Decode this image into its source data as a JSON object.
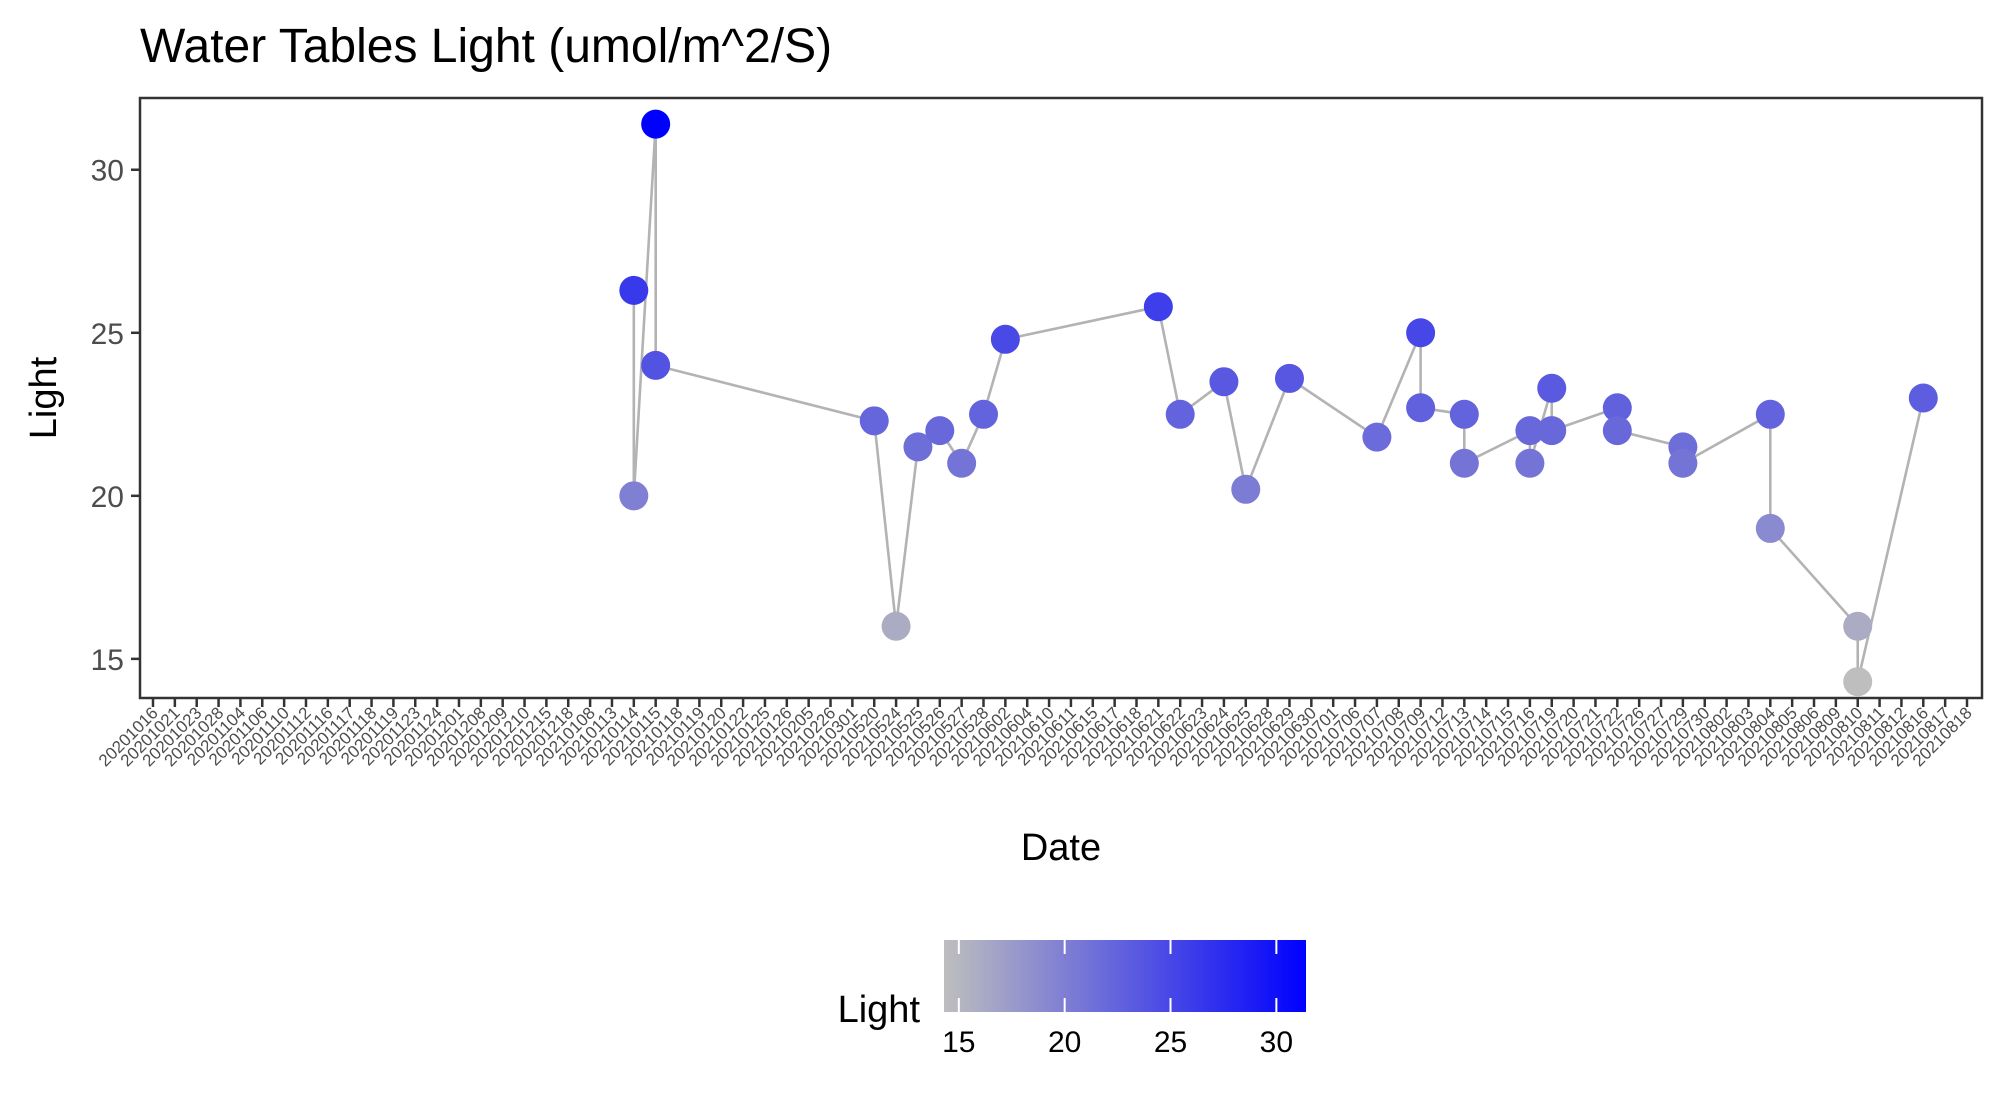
{
  "chart_data": {
    "type": "scatter",
    "title": "Water Tables Light (umol/m^2/S)",
    "xlabel": "Date",
    "ylabel": "Light",
    "ylim": [
      13.8,
      32.2
    ],
    "yticks": [
      15,
      20,
      25,
      30
    ],
    "grid": false,
    "legend": {
      "title": "Light",
      "position": "bottom",
      "type": "colorbar",
      "ticks": [
        15,
        20,
        25,
        30
      ],
      "range": [
        14.3,
        31.4
      ],
      "color_low": "#bebebe",
      "color_high": "#0000ff"
    },
    "segment_color": "#b3b3b3",
    "categories": [
      "20201016",
      "20201021",
      "20201023",
      "20201028",
      "20201104",
      "20201106",
      "20201110",
      "20201112",
      "20201116",
      "20201117",
      "20201118",
      "20201119",
      "20201123",
      "20201124",
      "20201201",
      "20201208",
      "20201209",
      "20201210",
      "20201215",
      "20201218",
      "20210108",
      "20210113",
      "20210114",
      "20210115",
      "20210118",
      "20210119",
      "20210120",
      "20210122",
      "20210125",
      "20210126",
      "20210205",
      "20210226",
      "20210301",
      "20210520",
      "20210524",
      "20210525",
      "20210526",
      "20210527",
      "20210528",
      "20210602",
      "20210604",
      "20210610",
      "20210611",
      "20210615",
      "20210617",
      "20210618",
      "20210621",
      "20210622",
      "20210623",
      "20210624",
      "20210625",
      "20210628",
      "20210629",
      "20210630",
      "20210701",
      "20210706",
      "20210707",
      "20210708",
      "20210709",
      "20210712",
      "20210713",
      "20210714",
      "20210715",
      "20210716",
      "20210719",
      "20210720",
      "20210721",
      "20210722",
      "20210726",
      "20210727",
      "20210729",
      "20210730",
      "20210802",
      "20210803",
      "20210804",
      "20210805",
      "20210806",
      "20210809",
      "20210810",
      "20210811",
      "20210812",
      "20210816",
      "20210817",
      "20210818"
    ],
    "points": [
      {
        "x": "20210114",
        "y": [
          26.3,
          20.0
        ]
      },
      {
        "x": "20210115",
        "y": [
          31.4,
          24.0
        ]
      },
      {
        "x": "20210520",
        "y": [
          22.3
        ]
      },
      {
        "x": "20210524",
        "y": [
          16.0
        ]
      },
      {
        "x": "20210525",
        "y": [
          21.5
        ]
      },
      {
        "x": "20210526",
        "y": [
          22.0
        ]
      },
      {
        "x": "20210527",
        "y": [
          21.0
        ]
      },
      {
        "x": "20210528",
        "y": [
          22.5
        ]
      },
      {
        "x": "20210602",
        "y": [
          24.8
        ]
      },
      {
        "x": "20210621",
        "y": [
          25.8
        ]
      },
      {
        "x": "20210622",
        "y": [
          22.5
        ]
      },
      {
        "x": "20210624",
        "y": [
          23.5
        ]
      },
      {
        "x": "20210625",
        "y": [
          20.2
        ]
      },
      {
        "x": "20210629",
        "y": [
          23.6
        ]
      },
      {
        "x": "20210707",
        "y": [
          21.8
        ]
      },
      {
        "x": "20210709",
        "y": [
          25.0,
          22.7
        ]
      },
      {
        "x": "20210713",
        "y": [
          22.5,
          21.0
        ]
      },
      {
        "x": "20210716",
        "y": [
          22.0,
          21.0
        ]
      },
      {
        "x": "20210719",
        "y": [
          23.3,
          22.0
        ]
      },
      {
        "x": "20210722",
        "y": [
          22.7,
          22.0
        ]
      },
      {
        "x": "20210729",
        "y": [
          21.5,
          21.0
        ]
      },
      {
        "x": "20210804",
        "y": [
          22.5,
          19.0
        ]
      },
      {
        "x": "20210810",
        "y": [
          16.0,
          14.3
        ]
      },
      {
        "x": "20210816",
        "y": [
          23.0
        ]
      }
    ]
  }
}
